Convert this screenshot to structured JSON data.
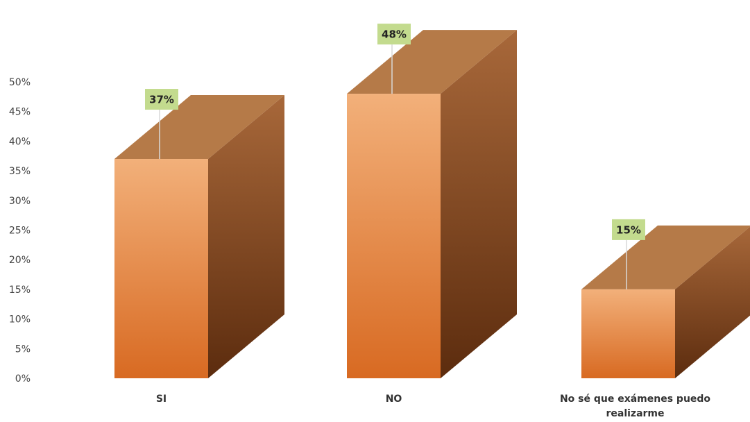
{
  "chart_data": {
    "type": "bar",
    "title": "",
    "xlabel": "",
    "ylabel": "",
    "categories": [
      "SI",
      "NO",
      "No sé que exámenes puedo realizarme"
    ],
    "category_lines": [
      [
        "SI"
      ],
      [
        "NO"
      ],
      [
        "No sé que exámenes puedo",
        "realizarme"
      ]
    ],
    "values": [
      37,
      48,
      15
    ],
    "data_labels": [
      "37%",
      "48%",
      "15%"
    ],
    "ylim": [
      0,
      50
    ],
    "yticks": [
      "0%",
      "5%",
      "10%",
      "15%",
      "20%",
      "25%",
      "30%",
      "35%",
      "40%",
      "45%",
      "50%"
    ],
    "grid": false,
    "legend": "none",
    "style": "3d-column",
    "colors": {
      "front_top": "#f2b07a",
      "front_bottom": "#d86a22",
      "side_top": "#a8683a",
      "side_bottom": "#5c2c0e",
      "top_face": "#b57a48",
      "label_bg": "#c3db8e"
    }
  }
}
